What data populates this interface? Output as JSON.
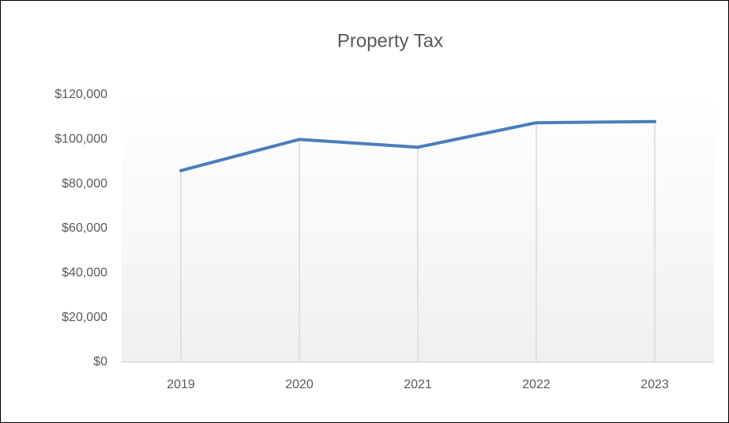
{
  "chart_data": {
    "type": "line",
    "title": "Property Tax",
    "categories": [
      "2019",
      "2020",
      "2021",
      "2022",
      "2023"
    ],
    "series": [
      {
        "name": "Property Tax",
        "color": "#4a7ebb",
        "values": [
          86000,
          100000,
          96500,
          107500,
          108000
        ]
      }
    ],
    "ylim": [
      0,
      120000
    ],
    "yticks": [
      {
        "value": 0,
        "label": "$0"
      },
      {
        "value": 20000,
        "label": "$20,000"
      },
      {
        "value": 40000,
        "label": "$40,000"
      },
      {
        "value": 60000,
        "label": "$60,000"
      },
      {
        "value": 80000,
        "label": "$80,000"
      },
      {
        "value": 100000,
        "label": "$100,000"
      },
      {
        "value": 120000,
        "label": "$120,000"
      }
    ],
    "drop_lines": true
  }
}
